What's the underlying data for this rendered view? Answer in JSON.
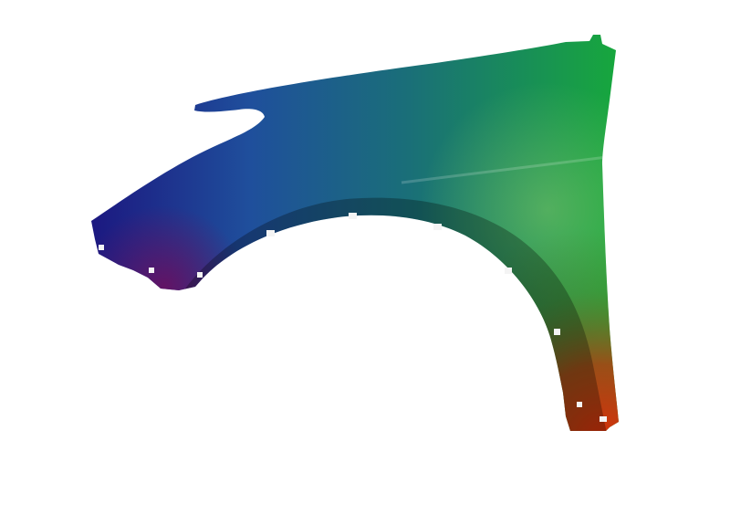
{
  "image": {
    "subject": "car-front-fender",
    "background_color": "#ffffff",
    "colors": {
      "left": "#1c1880",
      "top_middle": "#1f5aa3",
      "top_right": "#17a83c",
      "bottom_right": "#c22a0c",
      "bottom_left": "#5a1060"
    }
  }
}
